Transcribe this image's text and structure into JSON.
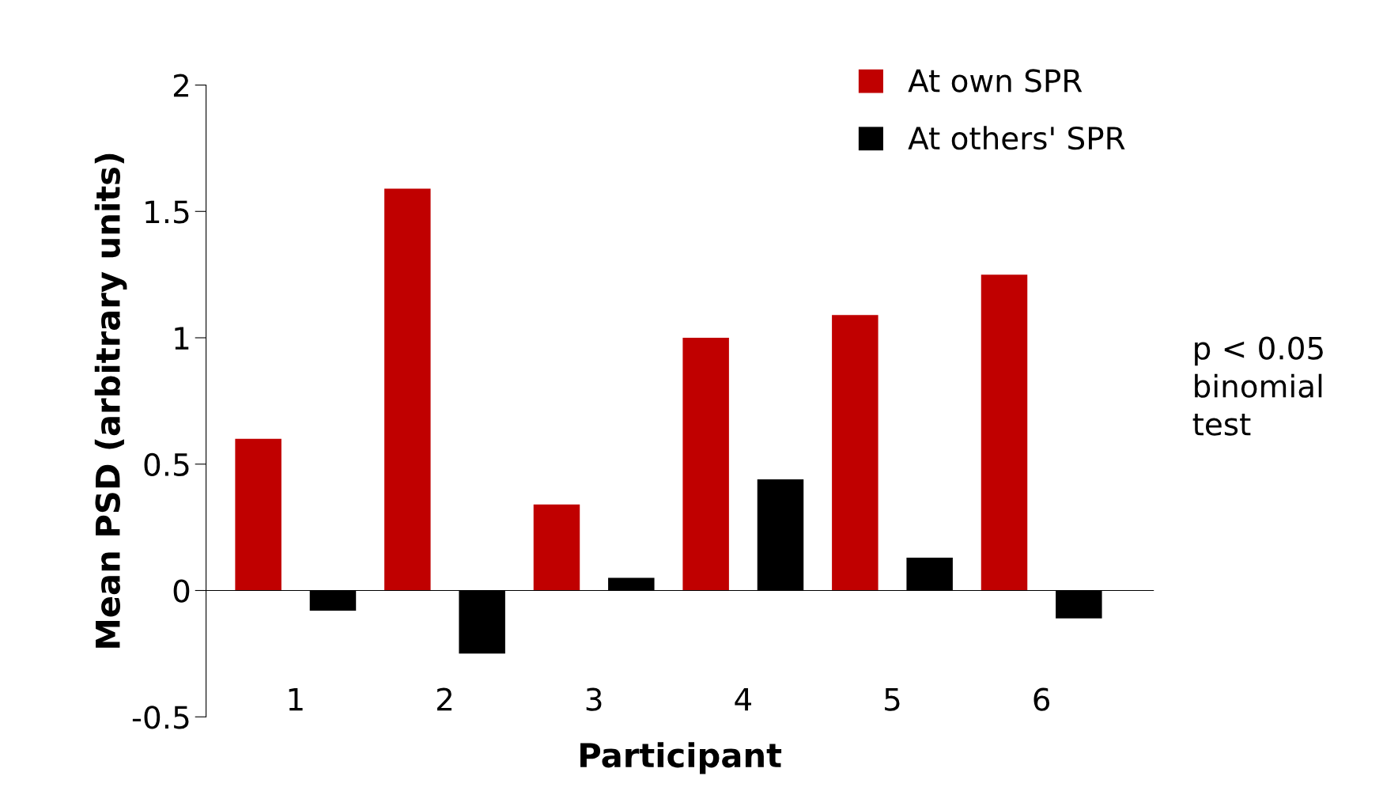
{
  "chart_data": {
    "type": "bar",
    "xlabel": "Participant",
    "ylabel": "Mean PSD (arbitrary units)",
    "categories": [
      "1",
      "2",
      "3",
      "4",
      "5",
      "6"
    ],
    "series": [
      {
        "name": "At own SPR",
        "color": "#c00000",
        "values": [
          0.6,
          1.59,
          0.34,
          1.0,
          1.09,
          1.25
        ]
      },
      {
        "name": "At others' SPR",
        "color": "#000000",
        "values": [
          -0.08,
          -0.25,
          0.05,
          0.44,
          0.13,
          -0.11
        ]
      }
    ],
    "ylim": [
      -0.5,
      2
    ],
    "yticks": [
      -0.5,
      0,
      0.5,
      1,
      1.5,
      2
    ],
    "annotations": [
      "p < 0.05\nbinomial\ntest"
    ],
    "legend": "top right"
  }
}
